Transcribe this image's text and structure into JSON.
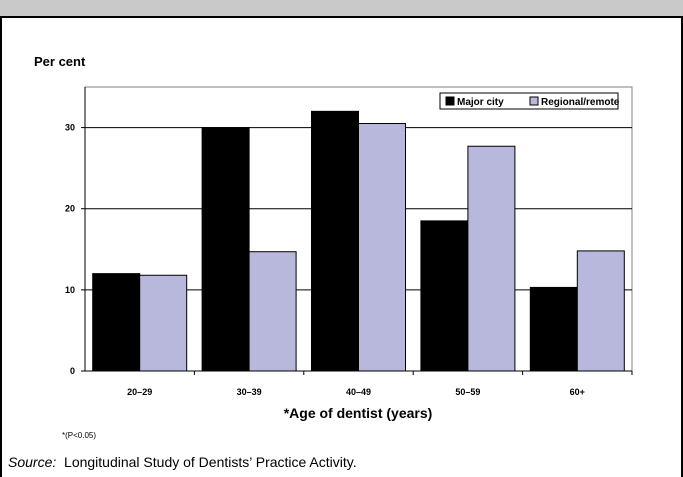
{
  "footnote": "*(P<0.05)",
  "source": {
    "label": "Source:",
    "text": "Longitudinal Study of Dentists’ Practice Activity."
  },
  "colors": {
    "major_city": "#000000",
    "regional_remote": "#b8b8dc",
    "header_bar": "#c9c9c9"
  },
  "chart_data": {
    "type": "bar",
    "title": "",
    "ylabel": "Per cent",
    "xlabel": "*Age of dentist (years)",
    "categories": [
      "20–29",
      "30–39",
      "40–49",
      "50–59",
      "60+"
    ],
    "ylim": [
      0,
      35
    ],
    "yticks": [
      0,
      10,
      20,
      30
    ],
    "grid": true,
    "legend_position": "top-right",
    "series": [
      {
        "name": "Major city",
        "values": [
          12.0,
          30.0,
          32.0,
          18.5,
          10.3
        ]
      },
      {
        "name": "Regional/remote",
        "values": [
          11.8,
          14.7,
          30.5,
          27.7,
          14.8
        ]
      }
    ]
  }
}
